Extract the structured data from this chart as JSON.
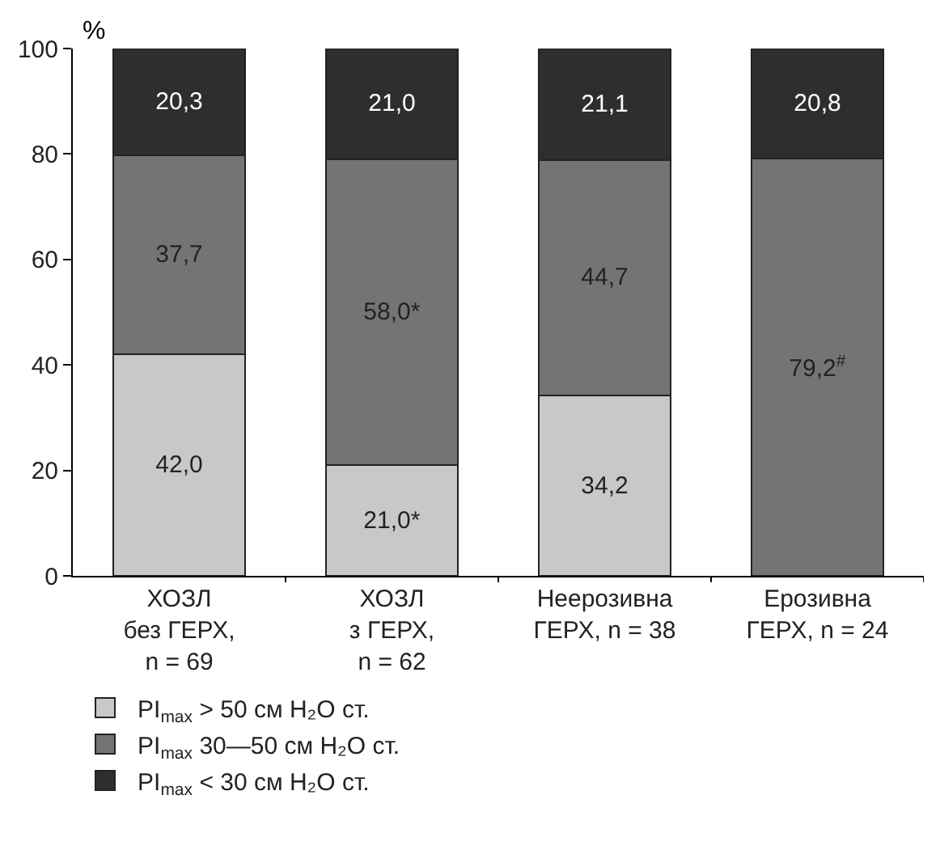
{
  "chart_data": {
    "type": "bar",
    "stacked": true,
    "ylabel": "%",
    "ylim": [
      0,
      100
    ],
    "yticks": [
      0,
      20,
      40,
      60,
      80,
      100
    ],
    "legend": "bottom",
    "categories": [
      "ХОЗЛ\nбез ГЕРХ,\nn = 69",
      "ХОЗЛ\nз ГЕРХ,\nn = 62",
      "Неерозивна\nГЕРХ, n = 38",
      "Ерозивна\nГЕРХ, n = 24"
    ],
    "series": [
      {
        "name": "PI$_{max}$ > 50 см H₂O ст.",
        "color": "#c8c8c8",
        "values": [
          42.0,
          21.0,
          34.2,
          null
        ],
        "value_labels": [
          "42,0",
          "21,0*",
          "34,2",
          null
        ]
      },
      {
        "name": "PI$_{max}$ 30—50 см H₂O ст.",
        "color": "#747474",
        "values": [
          37.7,
          58.0,
          44.7,
          79.2
        ],
        "value_labels": [
          "37,7",
          "58,0*",
          "44,7",
          "79,2$^{#}$"
        ]
      },
      {
        "name": "PI$_{max}$ < 30 см H₂O ст.",
        "color": "#2e2e2e",
        "values": [
          20.3,
          21.0,
          21.1,
          20.8
        ],
        "value_labels": [
          "20,3",
          "21,0",
          "21,1",
          "20,8"
        ]
      }
    ]
  }
}
